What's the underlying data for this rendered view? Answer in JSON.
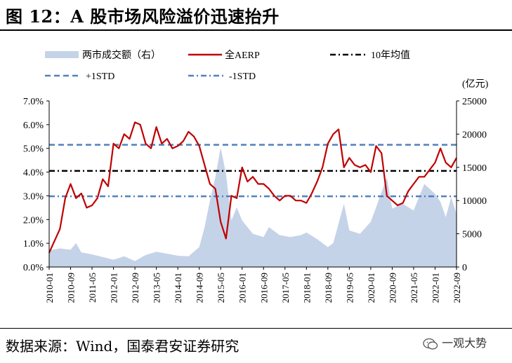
{
  "header": {
    "title": "图 12：A 股市场风险溢价迅速抬升"
  },
  "footer": {
    "source": "数据来源：Wind，国泰君安证券研究",
    "watermark": "一观大势"
  },
  "colors": {
    "volume": "#c5d3e8",
    "aerp": "#c00000",
    "mean": "#000000",
    "std": "#4f81bd"
  },
  "chart_data": {
    "type": "line",
    "title": "",
    "y_unit_right": "(亿元)",
    "ylim_left": [
      0,
      7
    ],
    "ylim_right": [
      0,
      25000
    ],
    "yticks_left": [
      "0.0%",
      "1.0%",
      "2.0%",
      "3.0%",
      "4.0%",
      "5.0%",
      "6.0%",
      "7.0%"
    ],
    "yticks_right": [
      "0",
      "5000",
      "10000",
      "15000",
      "20000",
      "25000"
    ],
    "x_ticks": [
      "2010-01",
      "2010-09",
      "2011-05",
      "2012-01",
      "2012-09",
      "2013-05",
      "2014-01",
      "2014-09",
      "2015-05",
      "2016-01",
      "2016-09",
      "2017-05",
      "2018-01",
      "2018-09",
      "2019-05",
      "2020-01",
      "2020-09",
      "2021-05",
      "2022-01",
      "2022-09"
    ],
    "legend": [
      {
        "name": "两市成交额（右）",
        "style": "area"
      },
      {
        "name": "全AERP",
        "style": "line"
      },
      {
        "name": "10年均值",
        "style": "dashdot-black"
      },
      {
        "name": "+1STD",
        "style": "dashed-blue"
      },
      {
        "name": "-1STD",
        "style": "dashdot-blue"
      }
    ],
    "reference_lines": {
      "mean": 4.05,
      "plus_1std": 5.15,
      "minus_1std": 2.98
    },
    "series": [
      {
        "name": "全AERP",
        "axis": "left",
        "points": [
          [
            "2010-01",
            0.6
          ],
          [
            "2010-03",
            1.1
          ],
          [
            "2010-05",
            1.6
          ],
          [
            "2010-07",
            2.9
          ],
          [
            "2010-09",
            3.5
          ],
          [
            "2010-11",
            2.9
          ],
          [
            "2011-01",
            3.1
          ],
          [
            "2011-03",
            2.5
          ],
          [
            "2011-05",
            2.6
          ],
          [
            "2011-07",
            2.9
          ],
          [
            "2011-09",
            3.7
          ],
          [
            "2011-11",
            3.4
          ],
          [
            "2012-01",
            5.2
          ],
          [
            "2012-03",
            5.0
          ],
          [
            "2012-05",
            5.6
          ],
          [
            "2012-07",
            5.4
          ],
          [
            "2012-09",
            6.1
          ],
          [
            "2012-11",
            6.0
          ],
          [
            "2013-01",
            5.2
          ],
          [
            "2013-03",
            5.0
          ],
          [
            "2013-05",
            5.9
          ],
          [
            "2013-07",
            5.2
          ],
          [
            "2013-09",
            5.4
          ],
          [
            "2013-11",
            5.0
          ],
          [
            "2014-01",
            5.1
          ],
          [
            "2014-03",
            5.3
          ],
          [
            "2014-05",
            5.7
          ],
          [
            "2014-07",
            5.5
          ],
          [
            "2014-09",
            5.1
          ],
          [
            "2014-11",
            4.3
          ],
          [
            "2015-01",
            3.5
          ],
          [
            "2015-03",
            3.3
          ],
          [
            "2015-05",
            1.9
          ],
          [
            "2015-07",
            1.2
          ],
          [
            "2015-09",
            3.0
          ],
          [
            "2015-11",
            2.9
          ],
          [
            "2016-01",
            4.2
          ],
          [
            "2016-03",
            3.6
          ],
          [
            "2016-05",
            3.8
          ],
          [
            "2016-07",
            3.5
          ],
          [
            "2016-09",
            3.5
          ],
          [
            "2016-11",
            3.3
          ],
          [
            "2017-01",
            3.0
          ],
          [
            "2017-03",
            2.8
          ],
          [
            "2017-05",
            3.0
          ],
          [
            "2017-07",
            3.0
          ],
          [
            "2017-09",
            2.8
          ],
          [
            "2017-11",
            2.8
          ],
          [
            "2018-01",
            2.7
          ],
          [
            "2018-03",
            3.1
          ],
          [
            "2018-05",
            3.6
          ],
          [
            "2018-07",
            4.2
          ],
          [
            "2018-09",
            5.2
          ],
          [
            "2018-11",
            5.6
          ],
          [
            "2019-01",
            5.8
          ],
          [
            "2019-03",
            4.2
          ],
          [
            "2019-05",
            4.6
          ],
          [
            "2019-07",
            4.3
          ],
          [
            "2019-09",
            4.2
          ],
          [
            "2019-11",
            4.3
          ],
          [
            "2020-01",
            4.0
          ],
          [
            "2020-03",
            5.1
          ],
          [
            "2020-05",
            4.8
          ],
          [
            "2020-07",
            3.0
          ],
          [
            "2020-09",
            2.8
          ],
          [
            "2020-11",
            2.6
          ],
          [
            "2021-01",
            2.7
          ],
          [
            "2021-03",
            3.2
          ],
          [
            "2021-05",
            3.5
          ],
          [
            "2021-07",
            3.8
          ],
          [
            "2021-09",
            3.8
          ],
          [
            "2021-11",
            4.1
          ],
          [
            "2022-01",
            4.4
          ],
          [
            "2022-03",
            5.0
          ],
          [
            "2022-05",
            4.4
          ],
          [
            "2022-07",
            4.2
          ],
          [
            "2022-09",
            4.6
          ]
        ]
      },
      {
        "name": "两市成交额（右）",
        "axis": "right",
        "points": [
          [
            "2010-01",
            2500
          ],
          [
            "2010-05",
            2800
          ],
          [
            "2010-09",
            2600
          ],
          [
            "2010-11",
            3600
          ],
          [
            "2011-01",
            2200
          ],
          [
            "2011-05",
            1900
          ],
          [
            "2011-09",
            1500
          ],
          [
            "2012-01",
            1100
          ],
          [
            "2012-05",
            1600
          ],
          [
            "2012-09",
            900
          ],
          [
            "2013-01",
            1800
          ],
          [
            "2013-05",
            2300
          ],
          [
            "2013-09",
            2000
          ],
          [
            "2014-01",
            1700
          ],
          [
            "2014-05",
            1600
          ],
          [
            "2014-09",
            3000
          ],
          [
            "2014-11",
            6000
          ],
          [
            "2015-01",
            10000
          ],
          [
            "2015-03",
            13500
          ],
          [
            "2015-05",
            18000
          ],
          [
            "2015-07",
            14000
          ],
          [
            "2015-09",
            7000
          ],
          [
            "2015-11",
            9000
          ],
          [
            "2016-01",
            7000
          ],
          [
            "2016-05",
            5000
          ],
          [
            "2016-09",
            4500
          ],
          [
            "2016-11",
            6000
          ],
          [
            "2017-03",
            4800
          ],
          [
            "2017-07",
            4500
          ],
          [
            "2017-11",
            4800
          ],
          [
            "2018-01",
            5200
          ],
          [
            "2018-05",
            4200
          ],
          [
            "2018-09",
            3000
          ],
          [
            "2018-11",
            3600
          ],
          [
            "2019-03",
            9500
          ],
          [
            "2019-05",
            5500
          ],
          [
            "2019-09",
            5000
          ],
          [
            "2020-01",
            6800
          ],
          [
            "2020-03",
            9000
          ],
          [
            "2020-07",
            13500
          ],
          [
            "2020-09",
            8800
          ],
          [
            "2021-01",
            9500
          ],
          [
            "2021-05",
            8500
          ],
          [
            "2021-09",
            12500
          ],
          [
            "2022-01",
            11000
          ],
          [
            "2022-03",
            9800
          ],
          [
            "2022-05",
            7500
          ],
          [
            "2022-07",
            10500
          ],
          [
            "2022-09",
            8000
          ]
        ]
      }
    ]
  }
}
